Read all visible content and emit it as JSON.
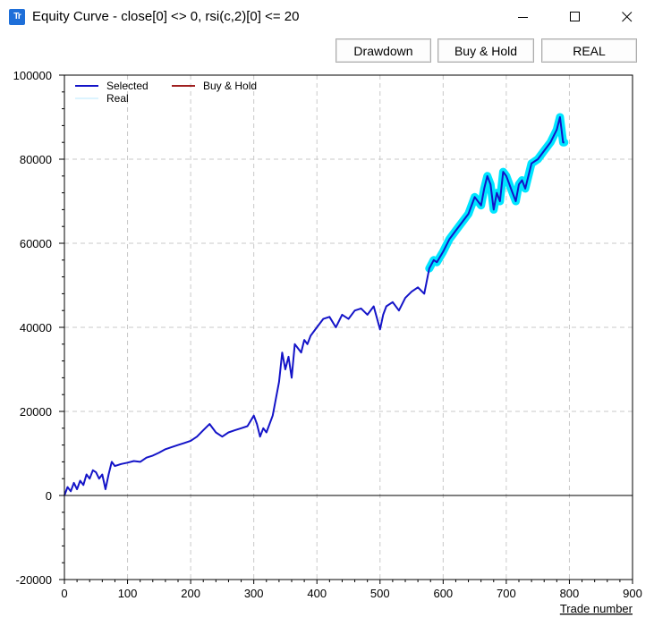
{
  "window": {
    "title": "Equity Curve - close[0] <> 0, rsi(c,2)[0] <= 20",
    "icon_name": "tt-app-icon",
    "icon_text": "Tr"
  },
  "toolbar": {
    "drawdown_label": "Drawdown",
    "buyhold_label": "Buy & Hold",
    "real_label": "REAL"
  },
  "chart_data": {
    "type": "line",
    "title": "",
    "xlabel": "Trade number",
    "ylabel": "",
    "xlim": [
      0,
      900
    ],
    "ylim": [
      -20000,
      100000
    ],
    "x_ticks": [
      0,
      100,
      200,
      300,
      400,
      500,
      600,
      700,
      800,
      900
    ],
    "y_ticks": [
      -20000,
      0,
      20000,
      40000,
      60000,
      80000,
      100000
    ],
    "grid": true,
    "legend_position": "top-left",
    "series": [
      {
        "name": "Selected",
        "color": "#1414c8",
        "x": [
          0,
          5,
          10,
          15,
          20,
          25,
          30,
          35,
          40,
          45,
          50,
          55,
          60,
          65,
          70,
          75,
          80,
          90,
          100,
          110,
          120,
          130,
          140,
          150,
          160,
          170,
          180,
          190,
          200,
          210,
          220,
          230,
          240,
          250,
          260,
          270,
          280,
          290,
          300,
          305,
          310,
          315,
          320,
          330,
          340,
          345,
          350,
          355,
          360,
          365,
          370,
          375,
          380,
          385,
          390,
          400,
          410,
          420,
          430,
          440,
          450,
          460,
          470,
          480,
          490,
          500,
          505,
          510,
          520,
          530,
          540,
          550,
          560,
          570,
          578,
          585,
          590,
          600,
          610,
          620,
          630,
          640,
          650,
          660,
          665,
          670,
          675,
          680,
          685,
          690,
          695,
          700,
          705,
          710,
          715,
          720,
          725,
          730,
          735,
          740,
          750,
          760,
          770,
          780,
          785,
          790,
          792
        ],
        "y": [
          0,
          2000,
          1000,
          3000,
          1500,
          3500,
          2500,
          5000,
          4000,
          6000,
          5500,
          4000,
          5000,
          1500,
          5000,
          8000,
          7000,
          7500,
          7800,
          8200,
          8000,
          9000,
          9500,
          10200,
          11000,
          11500,
          12000,
          12500,
          13000,
          14000,
          15500,
          17000,
          15000,
          14000,
          15000,
          15500,
          16000,
          16500,
          19000,
          17000,
          14000,
          16000,
          15000,
          19000,
          27000,
          34000,
          30000,
          33000,
          28000,
          36000,
          35000,
          34000,
          37000,
          36000,
          38000,
          40000,
          42000,
          42500,
          40000,
          43000,
          42000,
          44000,
          44500,
          43000,
          45000,
          39500,
          43000,
          45000,
          46000,
          44000,
          47000,
          48500,
          49500,
          48000,
          54000,
          56000,
          55500,
          58000,
          61000,
          63000,
          65000,
          67000,
          71000,
          69000,
          73000,
          76000,
          74000,
          68000,
          72000,
          70000,
          77000,
          76000,
          74000,
          72000,
          70000,
          74000,
          75000,
          73000,
          76000,
          79000,
          80000,
          82000,
          84000,
          87000,
          90000,
          84000,
          84000
        ]
      },
      {
        "name": "Buy & Hold",
        "color": "#a02020",
        "x": [],
        "y": []
      },
      {
        "name": "Real",
        "color": "#00e5ff",
        "x": [
          578,
          585,
          590,
          600,
          610,
          620,
          630,
          640,
          650,
          660,
          665,
          670,
          675,
          680,
          685,
          690,
          695,
          700,
          705,
          710,
          715,
          720,
          725,
          730,
          735,
          740,
          750,
          760,
          770,
          780,
          785,
          790,
          792
        ],
        "y": [
          54000,
          56000,
          55500,
          58000,
          61000,
          63000,
          65000,
          67000,
          71000,
          69000,
          73000,
          76000,
          74000,
          68000,
          72000,
          70000,
          77000,
          76000,
          74000,
          72000,
          70000,
          74000,
          75000,
          73000,
          76000,
          79000,
          80000,
          82000,
          84000,
          87000,
          90000,
          84000,
          84000
        ]
      }
    ]
  }
}
